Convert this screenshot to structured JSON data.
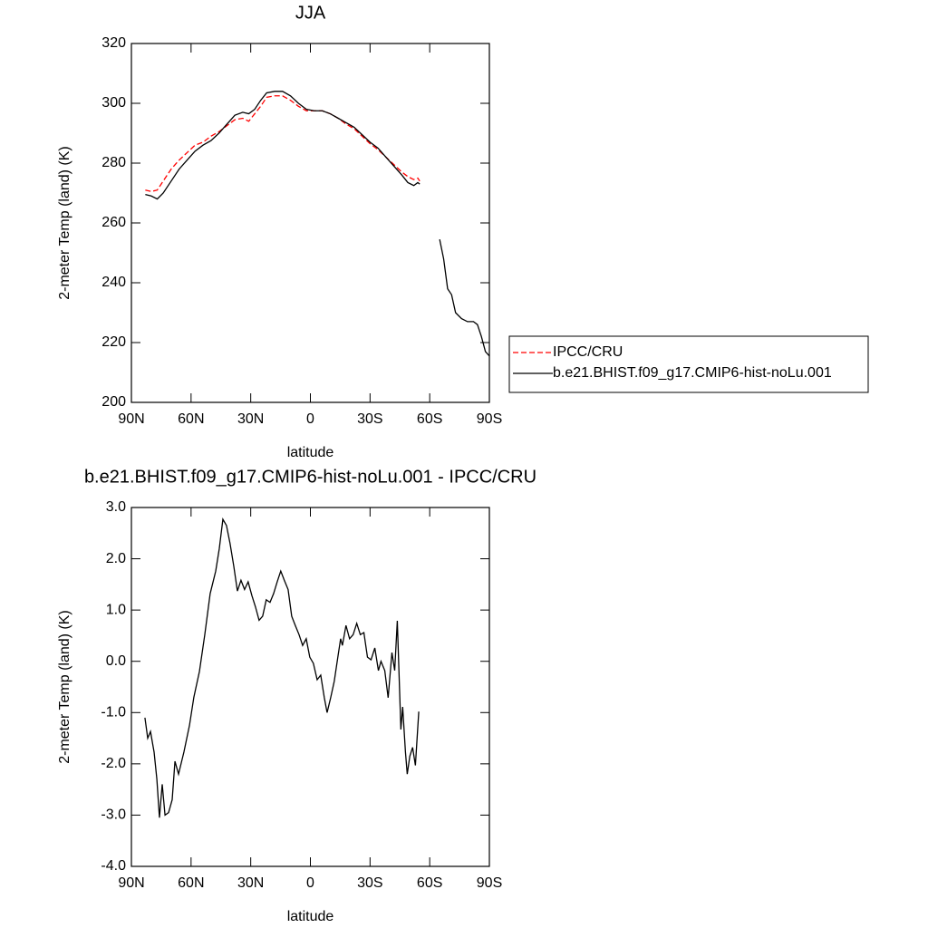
{
  "chart_data": [
    {
      "type": "line",
      "title": "JJA",
      "xlabel": "latitude",
      "ylabel": "2-meter Temp (land) (K)",
      "x": [
        83,
        80,
        77,
        74,
        70,
        66,
        62,
        58,
        54,
        50,
        46,
        42,
        38,
        34,
        31,
        28,
        25,
        22,
        18,
        14,
        10,
        6,
        2,
        -2,
        -6,
        -10,
        -14,
        -18,
        -22,
        -26,
        -30,
        -34,
        -38,
        -42,
        -46,
        -49,
        -52,
        -54,
        -55,
        -60,
        -65,
        -67,
        -69,
        -71,
        -73,
        -76,
        -79,
        -82,
        -84,
        -86,
        -88,
        -90
      ],
      "series": [
        {
          "name": "IPCC/CRU",
          "color": "#ff0000",
          "dash": true,
          "values": [
            271,
            270.5,
            271,
            274,
            278,
            281,
            283.5,
            286,
            287,
            289,
            290.5,
            292.5,
            294.5,
            295,
            294,
            296.5,
            299,
            302,
            302.5,
            302.5,
            301,
            299,
            297.5,
            297.5,
            297.5,
            296.5,
            295,
            293,
            291.5,
            289,
            286.5,
            284.5,
            282,
            279.5,
            277,
            275.5,
            274.5,
            275,
            274,
            null,
            null,
            null,
            null,
            null,
            null,
            null,
            null,
            null,
            null,
            null,
            null,
            null
          ]
        },
        {
          "name": "b.e21.BHIST.f09_g17.CMIP6-hist-noLu.001",
          "color": "#000000",
          "dash": false,
          "values": [
            269.5,
            269,
            268,
            270,
            274,
            278,
            281,
            284,
            286,
            287.5,
            290,
            293,
            296,
            297,
            296.5,
            298,
            301,
            303.5,
            304,
            304,
            302.5,
            300,
            298,
            297.5,
            297.5,
            296.5,
            295,
            293.5,
            292,
            289.5,
            287,
            285,
            282,
            279,
            276,
            273.5,
            272.5,
            273.5,
            273,
            null,
            254.5,
            248,
            238,
            236,
            230,
            228,
            227,
            227,
            226,
            222,
            217,
            215.5
          ]
        }
      ],
      "xlim": [
        90,
        -90
      ],
      "xticks": [
        {
          "value": 90,
          "label": "90N"
        },
        {
          "value": 60,
          "label": "60N"
        },
        {
          "value": 30,
          "label": "30N"
        },
        0,
        {
          "value": -30,
          "label": "30S"
        },
        {
          "value": -60,
          "label": "60S"
        },
        {
          "value": -90,
          "label": "90S"
        }
      ],
      "ylim": [
        200,
        320
      ],
      "yticks": [
        200,
        220,
        240,
        260,
        280,
        300,
        320
      ],
      "legend": "outside-right"
    },
    {
      "type": "line",
      "title": "b.e21.BHIST.f09_g17.CMIP6-hist-noLu.001 - IPCC/CRU",
      "xlabel": "latitude",
      "ylabel": "2-meter Temp (land) (K)",
      "x": [
        83.2,
        81.8,
        80.4,
        78.6,
        77.2,
        75.9,
        74.5,
        73.1,
        71.3,
        69.5,
        68.1,
        66.3,
        63.6,
        60.8,
        58.6,
        55.8,
        53.1,
        50.4,
        47.6,
        45.8,
        44.0,
        42.2,
        40.4,
        38.5,
        36.7,
        34.9,
        33.1,
        31.3,
        29.4,
        27.6,
        25.8,
        24.0,
        22.2,
        20.3,
        18.5,
        16.7,
        14.9,
        13.1,
        11.2,
        9.4,
        7.6,
        5.7,
        3.9,
        2.1,
        0.3,
        -1.5,
        -3.4,
        -5.2,
        -7.0,
        -8.4,
        -10.2,
        -12.0,
        -13.8,
        -15.2,
        -16.1,
        -17.9,
        -19.7,
        -21.5,
        -23.3,
        -25.1,
        -26.9,
        -28.7,
        -30.5,
        -32.4,
        -34.2,
        -35.5,
        -37.4,
        -39.1,
        -41.0,
        -42.4,
        -43.7,
        -45.5,
        -46.4,
        -47.8,
        -48.7,
        -50.0,
        -51.4,
        -52.8,
        -54.5
      ],
      "series": [
        {
          "color": "#000000",
          "dash": false,
          "values": [
            -1.1,
            -1.5,
            -1.37,
            -1.77,
            -2.3,
            -3.05,
            -2.4,
            -3.0,
            -2.95,
            -2.7,
            -1.95,
            -2.2,
            -1.77,
            -1.25,
            -0.7,
            -0.2,
            0.52,
            1.32,
            1.76,
            2.2,
            2.77,
            2.65,
            2.3,
            1.85,
            1.37,
            1.58,
            1.4,
            1.55,
            1.28,
            1.06,
            0.8,
            0.88,
            1.2,
            1.15,
            1.32,
            1.55,
            1.76,
            1.58,
            1.4,
            0.88,
            0.7,
            0.52,
            0.31,
            0.44,
            0.08,
            -0.04,
            -0.36,
            -0.27,
            -0.71,
            -1.0,
            -0.71,
            -0.39,
            0.08,
            0.44,
            0.31,
            0.7,
            0.44,
            0.52,
            0.74,
            0.52,
            0.56,
            0.08,
            0.03,
            0.26,
            -0.18,
            0,
            -0.18,
            -0.71,
            0.17,
            -0.18,
            0.79,
            -1.33,
            -0.89,
            -1.77,
            -2.2,
            -1.85,
            -1.68,
            -2.03,
            -0.98
          ]
        }
      ],
      "xlim": [
        90,
        -90
      ],
      "xticks": [
        {
          "value": 90,
          "label": "90N"
        },
        {
          "value": 60,
          "label": "60N"
        },
        {
          "value": 30,
          "label": "30N"
        },
        0,
        {
          "value": -30,
          "label": "30S"
        },
        {
          "value": -60,
          "label": "60S"
        },
        {
          "value": -90,
          "label": "90S"
        }
      ],
      "ylim": [
        -4,
        3
      ],
      "yticks": [
        {
          "value": -4,
          "label": "-4.0"
        },
        {
          "value": -3,
          "label": "-3.0"
        },
        {
          "value": -2,
          "label": "-2.0"
        },
        {
          "value": -1,
          "label": "-1.0"
        },
        {
          "value": 0,
          "label": "0.0"
        },
        {
          "value": 1,
          "label": "1.0"
        },
        {
          "value": 2,
          "label": "2.0"
        },
        {
          "value": 3,
          "label": "3.0"
        }
      ]
    }
  ]
}
